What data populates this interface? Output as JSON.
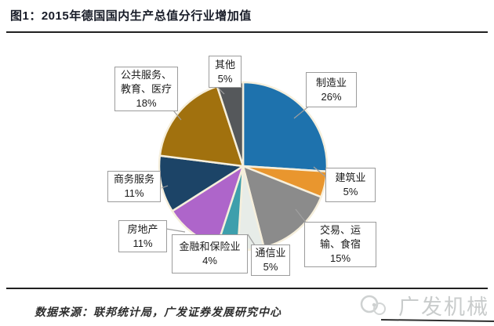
{
  "header": {
    "title": "图1：2015年德国国内生产总值分行业增加值"
  },
  "chart_data": {
    "type": "pie",
    "title": "2015年德国国内生产总值分行业增加值",
    "value_unit": "percent",
    "start_angle": "top",
    "direction": "clockwise",
    "separator_color": "#F6EFDC",
    "slices": [
      {
        "label": "制造业",
        "value": 26,
        "color": "#1E72AD"
      },
      {
        "label": "建筑业",
        "value": 5,
        "color": "#E9962E"
      },
      {
        "label": "交易、运输、食宿",
        "value": 15,
        "color": "#8B8B8B"
      },
      {
        "label": "通信业",
        "value": 5,
        "color": "#E7ECE8"
      },
      {
        "label": "金融和保险业",
        "value": 4,
        "color": "#3E9FAC"
      },
      {
        "label": "房地产",
        "value": 11,
        "color": "#AE65CA"
      },
      {
        "label": "商务服务",
        "value": 11,
        "color": "#1C4467"
      },
      {
        "label": "公共服务、教育、医疗",
        "value": 18,
        "color": "#A1710E"
      },
      {
        "label": "其他",
        "value": 5,
        "color": "#55585B"
      }
    ]
  },
  "callouts": [
    {
      "lines": [
        "制造业",
        "26%"
      ]
    },
    {
      "lines": [
        "建筑业",
        "5%"
      ]
    },
    {
      "lines": [
        "交易、运",
        "输、食宿",
        "15%"
      ]
    },
    {
      "lines": [
        "通信业",
        "5%"
      ]
    },
    {
      "lines": [
        "金融和保险业",
        "4%"
      ]
    },
    {
      "lines": [
        "房地产",
        "11%"
      ]
    },
    {
      "lines": [
        "商务服务",
        "11%"
      ]
    },
    {
      "lines": [
        "公共服务、",
        "教育、医疗",
        "18%"
      ]
    },
    {
      "lines": [
        "其他",
        "5%"
      ]
    }
  ],
  "footer": {
    "source": "数据来源：联邦统计局，广发证券发展研究中心",
    "watermark": "广发机械"
  }
}
